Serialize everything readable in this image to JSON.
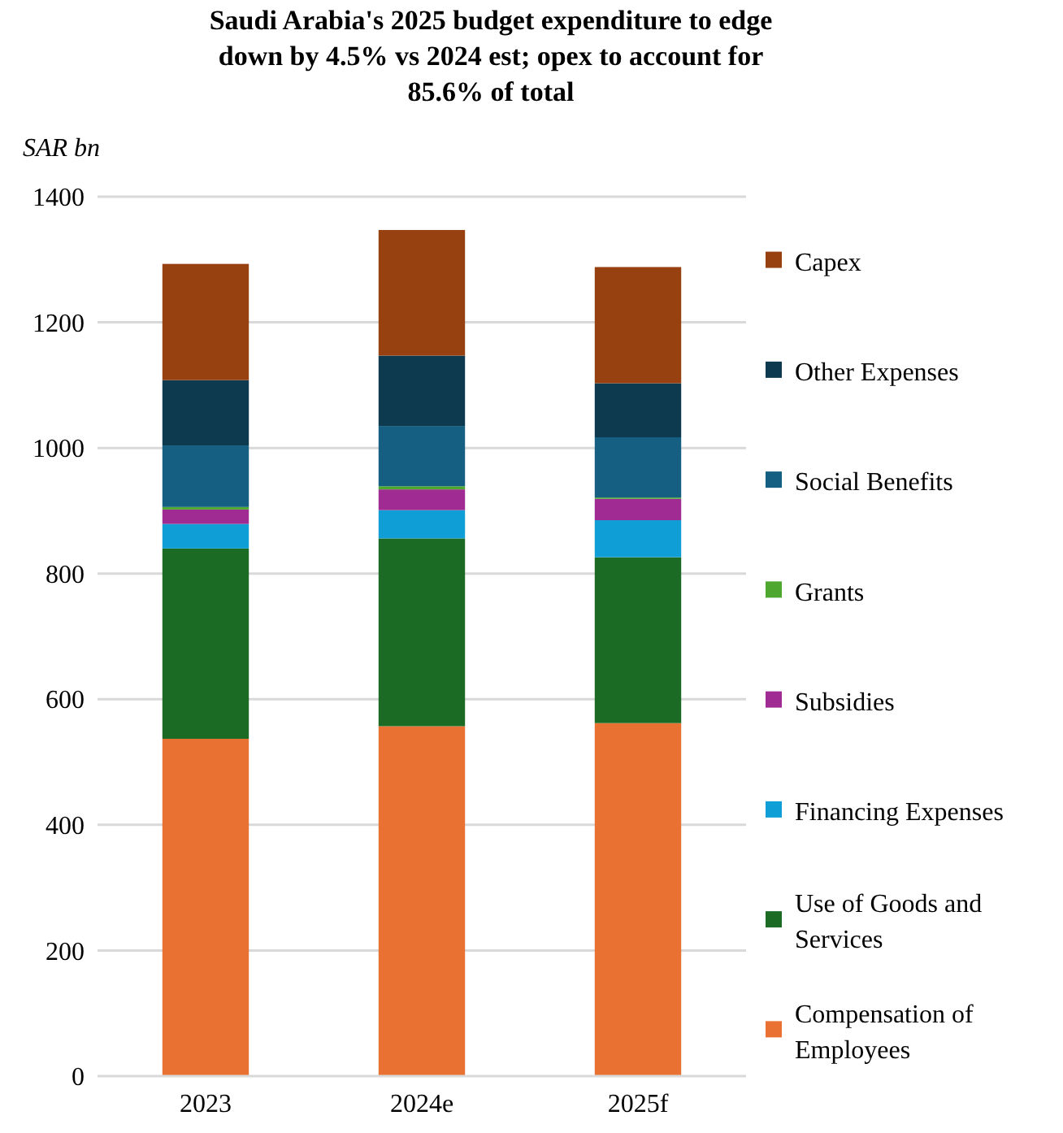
{
  "chart_data": {
    "type": "bar",
    "stacked": true,
    "title": "Saudi Arabia's 2025 budget expenditure to edge down by 4.5% vs 2024 est; opex to account for 85.6% of total",
    "ylabel": "SAR bn",
    "categories": [
      "2023",
      "2024e",
      "2025f"
    ],
    "series": [
      {
        "name": "Compensation of Employees",
        "color": "#e97132",
        "values": [
          537,
          557,
          562
        ]
      },
      {
        "name": "Use of Goods and Services",
        "color": "#1b6b24",
        "values": [
          303,
          299,
          264
        ]
      },
      {
        "name": "Financing Expenses",
        "color": "#0f9ed5",
        "values": [
          39,
          45,
          59
        ]
      },
      {
        "name": "Subsidies",
        "color": "#a02b93",
        "values": [
          23,
          33,
          34
        ]
      },
      {
        "name": "Grants",
        "color": "#4ea72e",
        "values": [
          4,
          5,
          2
        ]
      },
      {
        "name": "Social Benefits",
        "color": "#156082",
        "values": [
          98,
          96,
          96
        ]
      },
      {
        "name": "Other Expenses",
        "color": "#0e3a4f",
        "values": [
          104,
          112,
          86
        ]
      },
      {
        "name": "Capex",
        "color": "#974010",
        "values": [
          185,
          200,
          185
        ]
      }
    ],
    "ylim": [
      0,
      1400
    ],
    "yticks": [
      0,
      200,
      400,
      600,
      800,
      1000,
      1200,
      1400
    ],
    "grid": "y",
    "legend": "right"
  }
}
